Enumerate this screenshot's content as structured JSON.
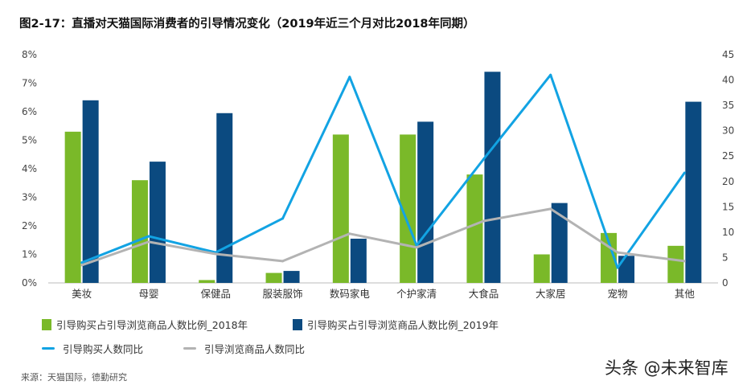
{
  "title": "图2-17：直播对天猫国际消费者的引导情况变化（2019年近三个月对比2018年同期）",
  "source": "来源：天猫国际，德勤研究",
  "watermark": "头条 @未来智库",
  "chart_data": {
    "type": "bar+line",
    "categories": [
      "美妆",
      "母婴",
      "保健品",
      "服装服饰",
      "数码家电",
      "个护家清",
      "大食品",
      "大家居",
      "宠物",
      "其他"
    ],
    "left_axis": {
      "min": 0,
      "max": 8,
      "ticks": [
        "0%",
        "1%",
        "2%",
        "3%",
        "4%",
        "5%",
        "6%",
        "7%",
        "8%"
      ]
    },
    "right_axis": {
      "min": 0,
      "max": 45,
      "ticks": [
        "0",
        "5",
        "10",
        "15",
        "20",
        "25",
        "30",
        "35",
        "40",
        "45"
      ]
    },
    "grid": false,
    "legend_position": "bottom",
    "series": [
      {
        "name": "引导购买占引导浏览商品人数比例_2018年",
        "kind": "bar",
        "axis": "left",
        "unit": "%",
        "color": "#7ab929",
        "values": [
          5.3,
          3.6,
          0.1,
          0.35,
          5.2,
          5.2,
          3.8,
          1.0,
          1.75,
          1.3
        ]
      },
      {
        "name": "引导购买占引导浏览商品人数比例_2019年",
        "kind": "bar",
        "axis": "left",
        "unit": "%",
        "color": "#0b4a80",
        "values": [
          6.4,
          4.25,
          5.95,
          0.42,
          1.55,
          5.65,
          7.4,
          2.8,
          0.95,
          6.35
        ]
      },
      {
        "name": "引导购买人数同比",
        "kind": "line",
        "axis": "right",
        "color": "#12a3e3",
        "values": [
          4.0,
          9.2,
          6.0,
          12.7,
          40.6,
          7.4,
          24.4,
          41.0,
          3.0,
          21.7
        ]
      },
      {
        "name": "引导浏览商品人数同比",
        "kind": "line",
        "axis": "right",
        "color": "#b3b3b3",
        "values": [
          3.5,
          8.1,
          5.7,
          4.3,
          9.7,
          7.0,
          12.2,
          14.6,
          6.0,
          4.3
        ]
      }
    ]
  }
}
